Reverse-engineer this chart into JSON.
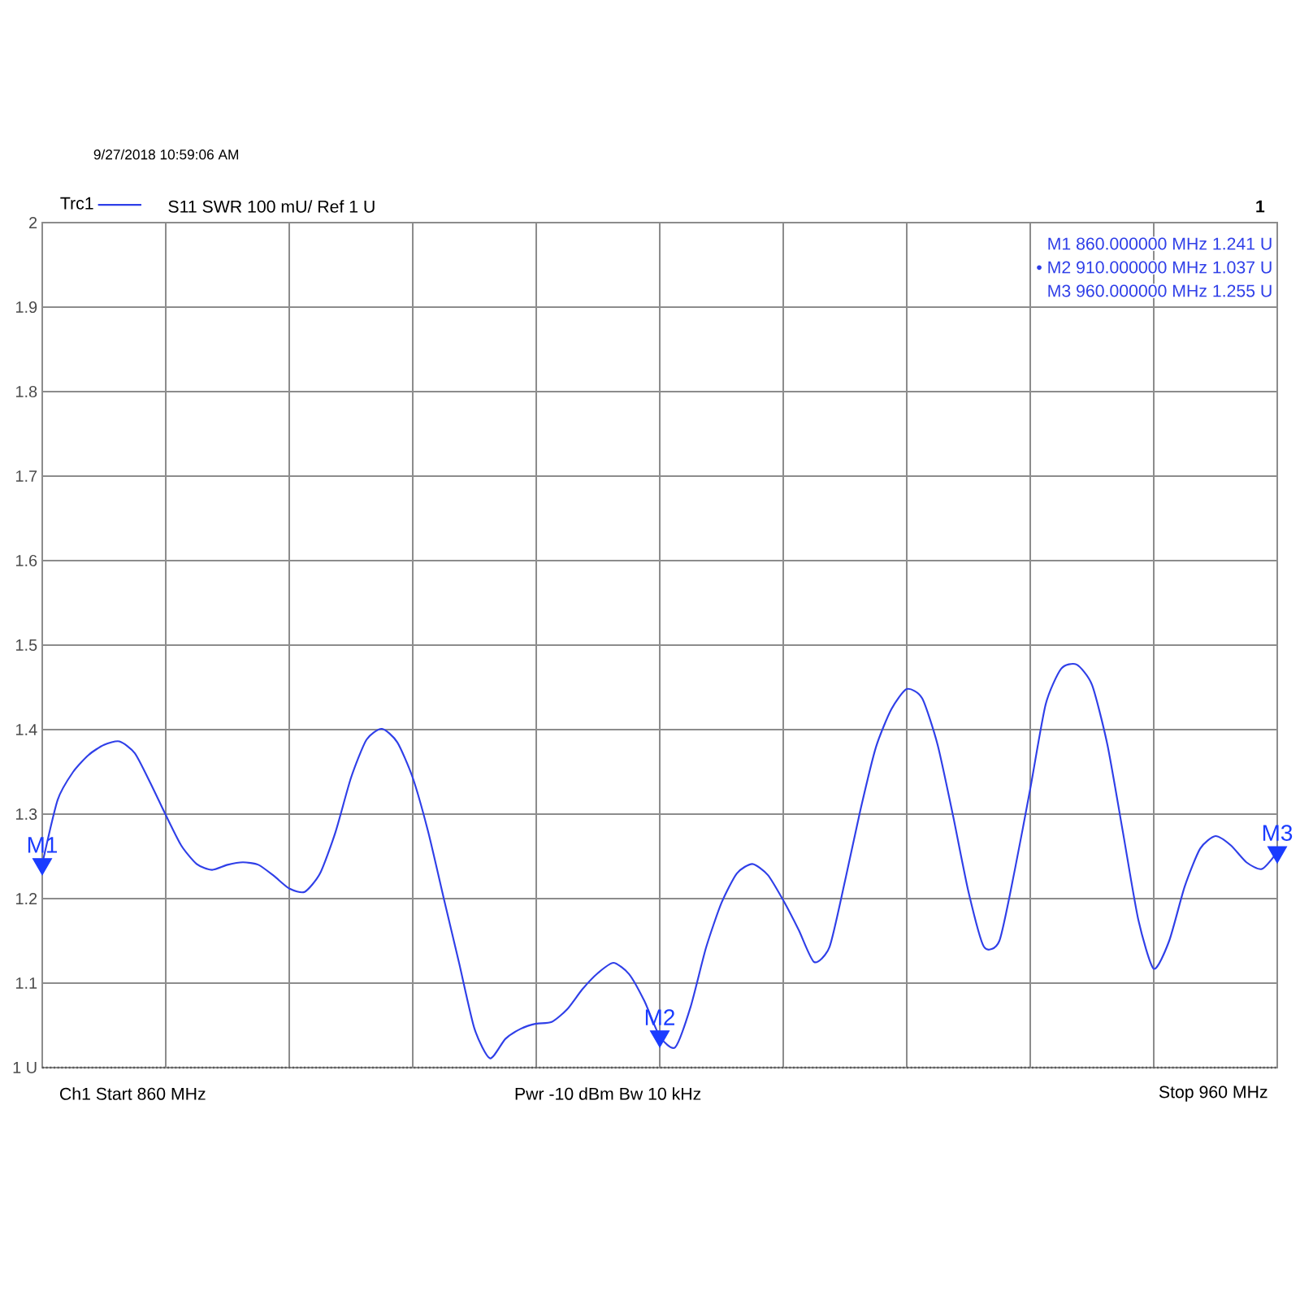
{
  "chart_data": {
    "type": "line",
    "categories": [
      null,
      null,
      null,
      null,
      null,
      null,
      null,
      null,
      null,
      null,
      null,
      null,
      null,
      null,
      null,
      null,
      null,
      null,
      null,
      null,
      null,
      null,
      null,
      null,
      null,
      null,
      null,
      null,
      null,
      null,
      null,
      null,
      null,
      null,
      null,
      null,
      null,
      null,
      null,
      null,
      null,
      null,
      null,
      null,
      null,
      null,
      null,
      null,
      null,
      null,
      null,
      null,
      null,
      null,
      null,
      null,
      null,
      null,
      null,
      null,
      null,
      null,
      null,
      null,
      null,
      null,
      null,
      null,
      null,
      null,
      null,
      null,
      null,
      null,
      null,
      null,
      null,
      null,
      null,
      null,
      null
    ],
    "series": [
      {
        "name": "Trc1",
        "color": "#2f3fe8",
        "values": [
          1.241,
          1.317,
          1.35,
          1.37,
          1.382,
          1.386,
          1.372,
          1.337,
          1.299,
          1.263,
          1.241,
          1.234,
          1.24,
          1.243,
          1.24,
          1.227,
          1.212,
          1.208,
          1.23,
          1.279,
          1.343,
          1.388,
          1.401,
          1.385,
          1.343,
          1.279,
          1.201,
          1.124,
          1.046,
          1.011,
          1.034,
          1.046,
          1.052,
          1.054,
          1.069,
          1.093,
          1.112,
          1.124,
          1.111,
          1.079,
          1.037,
          1.024,
          1.072,
          1.142,
          1.195,
          1.23,
          1.241,
          1.228,
          1.198,
          1.163,
          1.125,
          1.143,
          1.221,
          1.305,
          1.379,
          1.424,
          1.448,
          1.437,
          1.382,
          1.298,
          1.208,
          1.143,
          1.15,
          1.234,
          1.33,
          1.43,
          1.472,
          1.477,
          1.453,
          1.382,
          1.279,
          1.175,
          1.117,
          1.15,
          1.214,
          1.259,
          1.274,
          1.263,
          1.243,
          1.235,
          1.255
        ]
      },
      {
        "type": "scatter",
        "color": "#1a3cff",
        "marker": "triangle",
        "values": [
          1.241,
          null,
          null,
          null,
          null,
          null,
          null,
          null,
          null,
          null,
          null,
          null,
          null,
          null,
          null,
          null,
          null,
          null,
          null,
          null,
          null,
          null,
          null,
          null,
          null,
          null,
          null,
          null,
          null,
          null,
          null,
          null,
          null,
          null,
          null,
          null,
          null,
          null,
          null,
          null,
          1.037,
          null,
          null,
          null,
          null,
          null,
          null,
          null,
          null,
          null,
          null,
          null,
          null,
          null,
          null,
          null,
          null,
          null,
          null,
          null,
          null,
          null,
          null,
          null,
          null,
          null,
          null,
          null,
          null,
          null,
          null,
          null,
          null,
          null,
          null,
          null,
          null,
          null,
          null,
          null,
          1.255
        ],
        "value_labels": [
          "M1",
          null,
          null,
          null,
          null,
          null,
          null,
          null,
          null,
          null,
          null,
          null,
          null,
          null,
          null,
          null,
          null,
          null,
          null,
          null,
          null,
          null,
          null,
          null,
          null,
          null,
          null,
          null,
          null,
          null,
          null,
          null,
          null,
          null,
          null,
          null,
          null,
          null,
          null,
          null,
          "M2",
          null,
          null,
          null,
          null,
          null,
          null,
          null,
          null,
          null,
          null,
          null,
          null,
          null,
          null,
          null,
          null,
          null,
          null,
          null,
          null,
          null,
          null,
          null,
          null,
          null,
          null,
          null,
          null,
          null,
          null,
          null,
          null,
          null,
          null,
          null,
          null,
          null,
          null,
          null,
          "M3"
        ]
      }
    ],
    "ylim": [
      1,
      2
    ],
    "yticks": [
      {
        "value": 1,
        "label": "1 U"
      },
      1.1,
      1.2,
      1.3,
      1.4,
      1.5,
      1.6,
      1.7,
      1.8,
      1.9,
      2
    ],
    "grid": true,
    "legend": "top left",
    "line_style": "solid",
    "marker": "none",
    "ref_lines": [
      {
        "axis": "y",
        "value": 1,
        "color": "#5a5a5a",
        "line_style": "dotted"
      }
    ],
    "annotations": [
      "9/27/2018 10:59:06 AM",
      "S11 SWR 100 mU/ Ref 1 U",
      "1",
      "M1 860.000000 MHz 1.241 U",
      "• M2 910.000000 MHz 1.037 U",
      "M3 960.000000 MHz 1.255 U",
      "Ch1 Start 860 MHz",
      "Pwr -10 dBm Bw 10 kHz",
      "Stop 960 MHz"
    ]
  }
}
